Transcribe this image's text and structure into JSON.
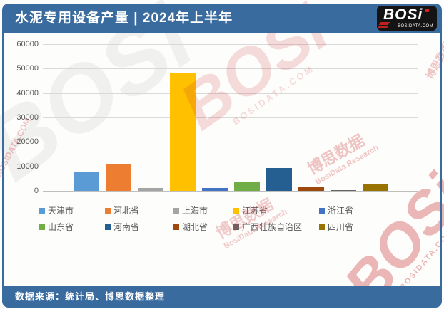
{
  "header": {
    "title": "水泥专用设备产量 | 2024年上半年",
    "logo": {
      "text": "BOSi",
      "subtext": "BOSIDATA.COM"
    }
  },
  "footer": {
    "source": "数据来源：统计局、博思数据整理"
  },
  "watermarks": {
    "brand": "BOSi",
    "domain": "BOSIDATA.COM",
    "name_cn": "博思数据",
    "name_en": "BosiData Research"
  },
  "colors": {
    "header_bg": "#3A6B9E",
    "footer_bg": "#3A6B9E",
    "gridline": "#D9D9D9",
    "axis_line": "#BFBFBF",
    "tick_text": "#595959",
    "legend_text": "#595959",
    "logo_bg": "#141414",
    "logo_accent_red": "#CC2222",
    "watermark_red": "#CC3333"
  },
  "chart_data": {
    "type": "bar",
    "title": "水泥专用设备产量 | 2024年上半年",
    "categories": [
      "天津市",
      "河北省",
      "上海市",
      "江苏省",
      "浙江省",
      "山东省",
      "河南省",
      "湖北省",
      "广西壮族自治区",
      "四川省"
    ],
    "values": [
      8000,
      11000,
      1300,
      48000,
      1300,
      3500,
      9400,
      1600,
      350,
      2600
    ],
    "colors": [
      "#5B9BD5",
      "#ED7D31",
      "#A5A5A5",
      "#FFC000",
      "#4472C4",
      "#70AD47",
      "#255E91",
      "#9E480E",
      "#636363",
      "#997300"
    ],
    "ylim": [
      0,
      60000
    ],
    "ytick_interval": 10000,
    "yticks": [
      "60000",
      "50000",
      "40000",
      "30000",
      "20000",
      "10000",
      "0"
    ],
    "xlabel": "",
    "ylabel": "",
    "grid": true,
    "legend_position": "bottom",
    "legend_rows": [
      [
        "天津市",
        "河北省",
        "上海市",
        "江苏省",
        "浙江省"
      ],
      [
        "山东省",
        "河南省",
        "湖北省",
        "广西壮族自治区",
        "四川省"
      ]
    ]
  }
}
